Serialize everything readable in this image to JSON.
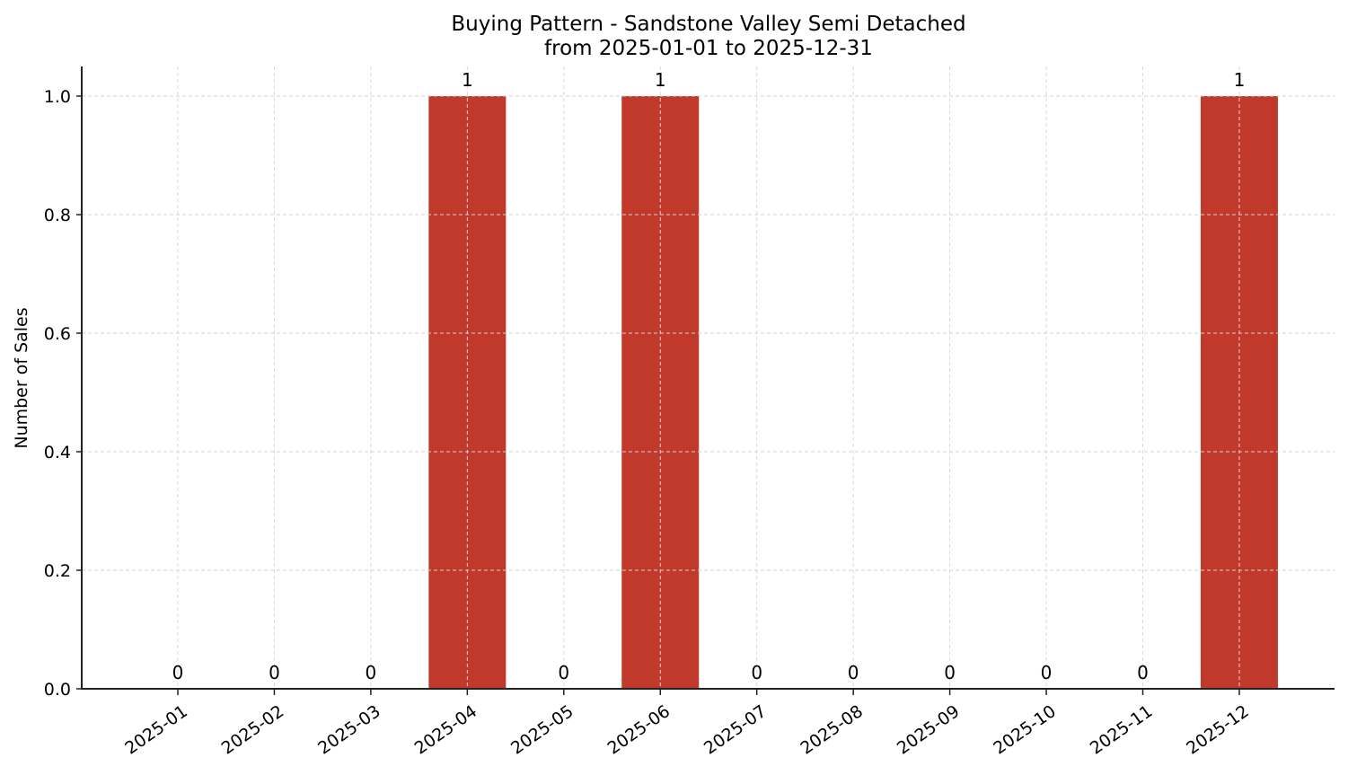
{
  "chart_data": {
    "type": "bar",
    "title": "Buying Pattern - Sandstone Valley Semi Detached",
    "subtitle": "from 2025-01-01 to 2025-12-31",
    "xlabel": "",
    "ylabel": "Number of Sales",
    "categories": [
      "2025-01",
      "2025-02",
      "2025-03",
      "2025-04",
      "2025-05",
      "2025-06",
      "2025-07",
      "2025-08",
      "2025-09",
      "2025-10",
      "2025-11",
      "2025-12"
    ],
    "values": [
      0,
      0,
      0,
      1,
      0,
      1,
      0,
      0,
      0,
      0,
      0,
      1
    ],
    "data_labels": [
      "0",
      "0",
      "0",
      "1",
      "0",
      "1",
      "0",
      "0",
      "0",
      "0",
      "0",
      "1"
    ],
    "ylim": [
      0,
      1.05
    ],
    "yticks": [
      "0.0",
      "0.2",
      "0.4",
      "0.6",
      "0.8",
      "1.0"
    ],
    "grid": true,
    "legend": null,
    "bar_color": "#c0392b"
  }
}
